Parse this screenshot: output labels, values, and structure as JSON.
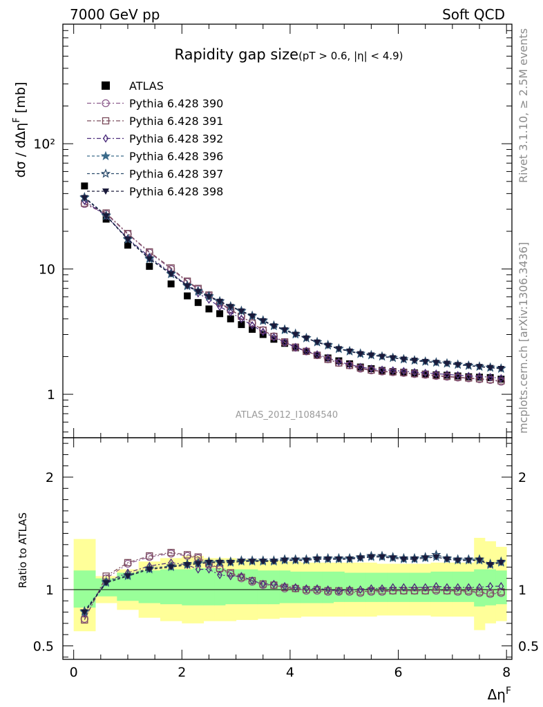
{
  "header": {
    "left": "7000 GeV pp",
    "right": "Soft QCD"
  },
  "title_main": "Rapidity gap size",
  "title_cuts": "(pT > 0.6, |η| < 4.9)",
  "analysis_id": "ATLAS_2012_I1084540",
  "side_text_top": "Rivet 3.1.10, ≥ 2.5M events",
  "side_text_bottom": "mcplots.cern.ch [arXiv:1306.3436]",
  "chart_data": [
    {
      "type": "scatter",
      "panel": "main",
      "ylabel": "dσ / dΔη^F [mb]",
      "yscale": "log",
      "ylim": [
        0.45,
        900
      ],
      "xlim": [
        -0.2,
        8.1
      ],
      "xticks": [
        0,
        2,
        4,
        6,
        8
      ],
      "yticks": [
        {
          "v": 1,
          "label": "1"
        },
        {
          "v": 10,
          "label": "10"
        },
        {
          "v": 100,
          "label": "10²"
        }
      ],
      "x": [
        0.2,
        0.6,
        1.0,
        1.4,
        1.8,
        2.1,
        2.3,
        2.5,
        2.7,
        2.9,
        3.1,
        3.3,
        3.5,
        3.7,
        3.9,
        4.1,
        4.3,
        4.5,
        4.7,
        4.9,
        5.1,
        5.3,
        5.5,
        5.7,
        5.9,
        6.1,
        6.3,
        6.5,
        6.7,
        6.9,
        7.1,
        7.3,
        7.5,
        7.7,
        7.9
      ],
      "series": [
        {
          "name": "ATLAS",
          "color": "#000000",
          "marker": "square-filled",
          "values": [
            46,
            25,
            15.5,
            10.5,
            7.6,
            6.1,
            5.4,
            4.8,
            4.4,
            4.0,
            3.6,
            3.3,
            3.0,
            2.75,
            2.55,
            2.35,
            2.2,
            2.05,
            1.95,
            1.85,
            1.75,
            1.65,
            1.6,
            1.55,
            1.52,
            1.5,
            1.48,
            1.45,
            1.43,
            1.42,
            1.4,
            1.38,
            1.37,
            1.36,
            1.32
          ]
        },
        {
          "name": "Pythia 6.428 390",
          "color": "#8c5a8c",
          "marker": "circle-open",
          "dash": "6,3,2,3",
          "values": [
            33,
            27.5,
            19.0,
            13.5,
            10.0,
            7.9,
            6.9,
            6.1,
            5.3,
            4.7,
            4.2,
            3.7,
            3.25,
            2.9,
            2.6,
            2.35,
            2.2,
            2.05,
            1.9,
            1.78,
            1.7,
            1.6,
            1.55,
            1.52,
            1.5,
            1.48,
            1.45,
            1.43,
            1.4,
            1.38,
            1.36,
            1.34,
            1.32,
            1.3,
            1.26
          ]
        },
        {
          "name": "Pythia 6.428 391",
          "color": "#7a4a5a",
          "marker": "square-open",
          "dash": "6,3,2,3",
          "values": [
            33.5,
            28,
            19.2,
            13.7,
            10.2,
            8.0,
            7.0,
            6.2,
            5.4,
            4.75,
            4.2,
            3.7,
            3.25,
            2.9,
            2.62,
            2.38,
            2.2,
            2.05,
            1.9,
            1.78,
            1.7,
            1.62,
            1.56,
            1.53,
            1.51,
            1.49,
            1.46,
            1.44,
            1.41,
            1.39,
            1.37,
            1.35,
            1.33,
            1.31,
            1.28
          ]
        },
        {
          "name": "Pythia 6.428 392",
          "color": "#4a2a7a",
          "marker": "diamond-open",
          "dash": "6,3,2,3",
          "values": [
            35,
            26.5,
            17.5,
            12.5,
            9.3,
            7.4,
            6.4,
            5.7,
            5.0,
            4.5,
            4.0,
            3.55,
            3.15,
            2.85,
            2.6,
            2.38,
            2.22,
            2.08,
            1.95,
            1.82,
            1.73,
            1.65,
            1.6,
            1.57,
            1.55,
            1.53,
            1.5,
            1.48,
            1.46,
            1.44,
            1.42,
            1.4,
            1.39,
            1.37,
            1.34
          ]
        },
        {
          "name": "Pythia 6.428 396",
          "color": "#3a6a8a",
          "marker": "star-filled",
          "dash": "4,3",
          "values": [
            37,
            26.5,
            17.2,
            12.0,
            9.1,
            7.3,
            6.6,
            6.0,
            5.5,
            5.0,
            4.6,
            4.2,
            3.85,
            3.5,
            3.25,
            3.0,
            2.8,
            2.6,
            2.45,
            2.3,
            2.2,
            2.1,
            2.05,
            2.0,
            1.95,
            1.9,
            1.86,
            1.82,
            1.79,
            1.76,
            1.72,
            1.69,
            1.66,
            1.63,
            1.6
          ]
        },
        {
          "name": "Pythia 6.428 397",
          "color": "#2a4a6a",
          "marker": "star-open",
          "dash": "4,3",
          "values": [
            37.5,
            26.8,
            17.4,
            12.2,
            9.2,
            7.4,
            6.7,
            6.1,
            5.55,
            5.05,
            4.65,
            4.25,
            3.9,
            3.55,
            3.3,
            3.05,
            2.82,
            2.62,
            2.48,
            2.32,
            2.22,
            2.12,
            2.06,
            2.01,
            1.96,
            1.91,
            1.87,
            1.83,
            1.8,
            1.77,
            1.73,
            1.7,
            1.67,
            1.64,
            1.61
          ]
        },
        {
          "name": "Pythia 6.428 398",
          "color": "#1a1a3a",
          "marker": "triangle-down-filled",
          "dash": "4,3",
          "values": [
            37,
            26.5,
            17.2,
            12.0,
            9.1,
            7.3,
            6.6,
            6.0,
            5.5,
            5.0,
            4.6,
            4.2,
            3.85,
            3.5,
            3.25,
            3.0,
            2.8,
            2.6,
            2.45,
            2.3,
            2.2,
            2.1,
            2.05,
            2.0,
            1.95,
            1.9,
            1.86,
            1.82,
            1.79,
            1.76,
            1.72,
            1.69,
            1.66,
            1.63,
            1.6
          ]
        }
      ]
    },
    {
      "type": "scatter",
      "panel": "ratio",
      "ylabel": "Ratio to ATLAS",
      "xlabel": "Δη^F",
      "ylim": [
        0.38,
        2.35
      ],
      "yticks": [
        {
          "v": 0.5,
          "label": "0.5"
        },
        {
          "v": 1,
          "label": "1"
        },
        {
          "v": 2,
          "label": "2"
        }
      ],
      "bands": {
        "edges": [
          0.0,
          0.4,
          0.8,
          1.2,
          1.6,
          2.0,
          2.2,
          2.4,
          2.6,
          2.8,
          3.0,
          3.2,
          3.4,
          3.6,
          3.8,
          4.0,
          4.2,
          4.4,
          4.6,
          4.8,
          5.0,
          5.2,
          5.4,
          5.6,
          5.8,
          6.0,
          6.2,
          6.4,
          6.6,
          6.8,
          7.0,
          7.2,
          7.4,
          7.6,
          7.8,
          8.0
        ],
        "yellow": [
          [
            0.63,
            1.45
          ],
          [
            0.88,
            1.12
          ],
          [
            0.82,
            1.18
          ],
          [
            0.75,
            1.25
          ],
          [
            0.72,
            1.28
          ],
          [
            0.7,
            1.3
          ],
          [
            0.7,
            1.3
          ],
          [
            0.72,
            1.28
          ],
          [
            0.72,
            1.28
          ],
          [
            0.72,
            1.28
          ],
          [
            0.73,
            1.27
          ],
          [
            0.73,
            1.27
          ],
          [
            0.74,
            1.26
          ],
          [
            0.74,
            1.26
          ],
          [
            0.75,
            1.25
          ],
          [
            0.75,
            1.25
          ],
          [
            0.76,
            1.24
          ],
          [
            0.76,
            1.24
          ],
          [
            0.76,
            1.24
          ],
          [
            0.76,
            1.24
          ],
          [
            0.76,
            1.24
          ],
          [
            0.76,
            1.24
          ],
          [
            0.76,
            1.24
          ],
          [
            0.77,
            1.23
          ],
          [
            0.77,
            1.23
          ],
          [
            0.77,
            1.23
          ],
          [
            0.77,
            1.23
          ],
          [
            0.77,
            1.23
          ],
          [
            0.76,
            1.24
          ],
          [
            0.76,
            1.24
          ],
          [
            0.76,
            1.24
          ],
          [
            0.76,
            1.24
          ],
          [
            0.64,
            1.46
          ],
          [
            0.7,
            1.43
          ],
          [
            0.72,
            1.38
          ]
        ],
        "green": [
          [
            0.84,
            1.17
          ],
          [
            0.94,
            1.1
          ],
          [
            0.9,
            1.15
          ],
          [
            0.88,
            1.17
          ],
          [
            0.87,
            1.18
          ],
          [
            0.86,
            1.18
          ],
          [
            0.86,
            1.19
          ],
          [
            0.86,
            1.19
          ],
          [
            0.86,
            1.19
          ],
          [
            0.87,
            1.18
          ],
          [
            0.87,
            1.18
          ],
          [
            0.87,
            1.18
          ],
          [
            0.87,
            1.17
          ],
          [
            0.87,
            1.17
          ],
          [
            0.88,
            1.17
          ],
          [
            0.88,
            1.16
          ],
          [
            0.88,
            1.16
          ],
          [
            0.88,
            1.16
          ],
          [
            0.88,
            1.16
          ],
          [
            0.89,
            1.16
          ],
          [
            0.89,
            1.15
          ],
          [
            0.89,
            1.15
          ],
          [
            0.89,
            1.15
          ],
          [
            0.89,
            1.15
          ],
          [
            0.89,
            1.15
          ],
          [
            0.89,
            1.15
          ],
          [
            0.89,
            1.15
          ],
          [
            0.89,
            1.15
          ],
          [
            0.89,
            1.16
          ],
          [
            0.89,
            1.16
          ],
          [
            0.89,
            1.16
          ],
          [
            0.89,
            1.16
          ],
          [
            0.85,
            1.18
          ],
          [
            0.86,
            1.18
          ],
          [
            0.87,
            1.17
          ]
        ]
      },
      "x": [
        0.2,
        0.6,
        1.0,
        1.4,
        1.8,
        2.1,
        2.3,
        2.5,
        2.7,
        2.9,
        3.1,
        3.3,
        3.5,
        3.7,
        3.9,
        4.1,
        4.3,
        4.5,
        4.7,
        4.9,
        5.1,
        5.3,
        5.5,
        5.7,
        5.9,
        6.1,
        6.3,
        6.5,
        6.7,
        6.9,
        7.1,
        7.3,
        7.5,
        7.7,
        7.9
      ],
      "series": [
        {
          "name": "Pythia 6.428 390",
          "color": "#8c5a8c",
          "marker": "circle-open",
          "dash": "6,3,2,3",
          "values": [
            0.74,
            1.1,
            1.23,
            1.29,
            1.32,
            1.3,
            1.28,
            1.22,
            1.18,
            1.14,
            1.1,
            1.07,
            1.04,
            1.04,
            1.01,
            1.01,
            0.99,
            0.99,
            0.98,
            0.98,
            0.98,
            0.97,
            0.98,
            0.98,
            0.99,
            0.99,
            0.99,
            0.99,
            0.99,
            0.99,
            0.98,
            0.98,
            0.97,
            0.96,
            0.97
          ]
        },
        {
          "name": "Pythia 6.428 391",
          "color": "#7a4a5a",
          "marker": "square-open",
          "dash": "6,3,2,3",
          "values": [
            0.73,
            1.12,
            1.24,
            1.3,
            1.33,
            1.31,
            1.29,
            1.23,
            1.19,
            1.15,
            1.11,
            1.08,
            1.05,
            1.04,
            1.02,
            1.01,
            1.0,
            1.0,
            0.99,
            0.99,
            0.99,
            0.98,
            0.99,
            0.99,
            0.99,
            0.99,
            0.99,
            0.99,
            1.0,
            0.99,
            0.99,
            0.99,
            0.98,
            0.97,
            0.98
          ]
        },
        {
          "name": "Pythia 6.428 392",
          "color": "#4a2a7a",
          "marker": "diamond-open",
          "dash": "6,3,2,3",
          "values": [
            0.79,
            1.07,
            1.15,
            1.21,
            1.24,
            1.22,
            1.18,
            1.18,
            1.13,
            1.12,
            1.12,
            1.08,
            1.05,
            1.05,
            1.03,
            1.02,
            1.01,
            1.01,
            1.0,
            0.99,
            1.0,
            1.0,
            1.01,
            1.01,
            1.02,
            1.02,
            1.02,
            1.02,
            1.03,
            1.02,
            1.02,
            1.02,
            1.02,
            1.03,
            1.03
          ]
        },
        {
          "name": "Pythia 6.428 396",
          "color": "#3a6a8a",
          "marker": "star-filled",
          "dash": "4,3",
          "values": [
            0.8,
            1.06,
            1.12,
            1.18,
            1.2,
            1.22,
            1.23,
            1.24,
            1.24,
            1.24,
            1.25,
            1.25,
            1.25,
            1.25,
            1.26,
            1.26,
            1.26,
            1.27,
            1.27,
            1.27,
            1.27,
            1.28,
            1.29,
            1.29,
            1.28,
            1.27,
            1.27,
            1.28,
            1.29,
            1.27,
            1.26,
            1.26,
            1.26,
            1.22,
            1.24
          ]
        },
        {
          "name": "Pythia 6.428 397",
          "color": "#2a4a6a",
          "marker": "star-open",
          "dash": "4,3",
          "values": [
            0.81,
            1.07,
            1.13,
            1.19,
            1.21,
            1.23,
            1.24,
            1.25,
            1.25,
            1.25,
            1.26,
            1.26,
            1.26,
            1.26,
            1.27,
            1.27,
            1.27,
            1.28,
            1.28,
            1.28,
            1.28,
            1.29,
            1.3,
            1.3,
            1.29,
            1.28,
            1.28,
            1.29,
            1.31,
            1.28,
            1.27,
            1.27,
            1.27,
            1.23,
            1.25
          ]
        },
        {
          "name": "Pythia 6.428 398",
          "color": "#1a1a3a",
          "marker": "triangle-down-filled",
          "dash": "4,3",
          "values": [
            0.8,
            1.06,
            1.12,
            1.18,
            1.2,
            1.22,
            1.23,
            1.24,
            1.24,
            1.24,
            1.25,
            1.25,
            1.25,
            1.25,
            1.26,
            1.26,
            1.26,
            1.27,
            1.27,
            1.27,
            1.27,
            1.28,
            1.29,
            1.29,
            1.28,
            1.27,
            1.27,
            1.28,
            1.29,
            1.27,
            1.26,
            1.26,
            1.26,
            1.22,
            1.24
          ]
        }
      ]
    }
  ]
}
